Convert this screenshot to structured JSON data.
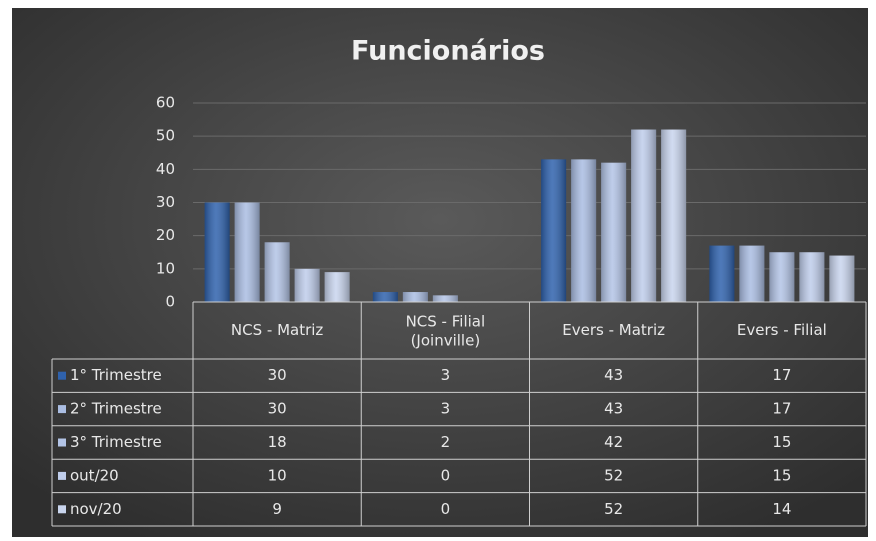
{
  "chart_data": {
    "type": "bar",
    "title": "Funcionários",
    "categories": [
      "NCS - Matriz",
      "NCS - Filial (Joinville)",
      "Evers - Matriz",
      "Evers - Filial"
    ],
    "series": [
      {
        "name": "1° Trimestre",
        "color": "#2f62ad",
        "values": [
          30,
          3,
          43,
          17
        ]
      },
      {
        "name": "2° Trimestre",
        "color": "#aabde2",
        "values": [
          30,
          3,
          43,
          17
        ]
      },
      {
        "name": "3° Trimestre",
        "color": "#b3c4e6",
        "values": [
          18,
          2,
          42,
          15
        ]
      },
      {
        "name": "out/20",
        "color": "#bfcdeb",
        "values": [
          10,
          0,
          52,
          15
        ]
      },
      {
        "name": "nov/20",
        "color": "#c9d5ee",
        "values": [
          9,
          0,
          52,
          14
        ]
      }
    ],
    "ylim": [
      0,
      60
    ],
    "yticks": [
      0,
      10,
      20,
      30,
      40,
      50,
      60
    ],
    "grid": true
  }
}
